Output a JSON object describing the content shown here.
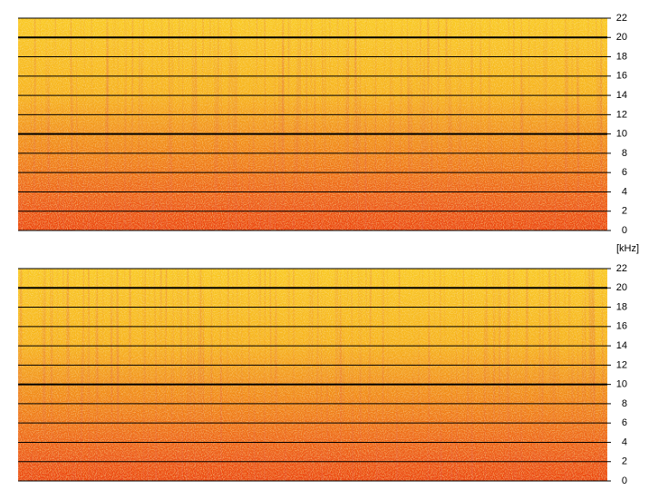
{
  "chart_data": [
    {
      "type": "spectrogram",
      "ylim": [
        0,
        22
      ],
      "yticks": [
        0,
        2,
        4,
        6,
        8,
        10,
        12,
        14,
        16,
        18,
        20,
        22
      ],
      "major_gridlines": [
        10,
        20
      ],
      "grid": true,
      "y_label": "[kHz]"
    },
    {
      "type": "spectrogram",
      "ylim": [
        0,
        22
      ],
      "yticks": [
        0,
        2,
        4,
        6,
        8,
        10,
        12,
        14,
        16,
        18,
        20,
        22
      ],
      "major_gridlines": [
        10,
        20
      ],
      "grid": true
    }
  ]
}
